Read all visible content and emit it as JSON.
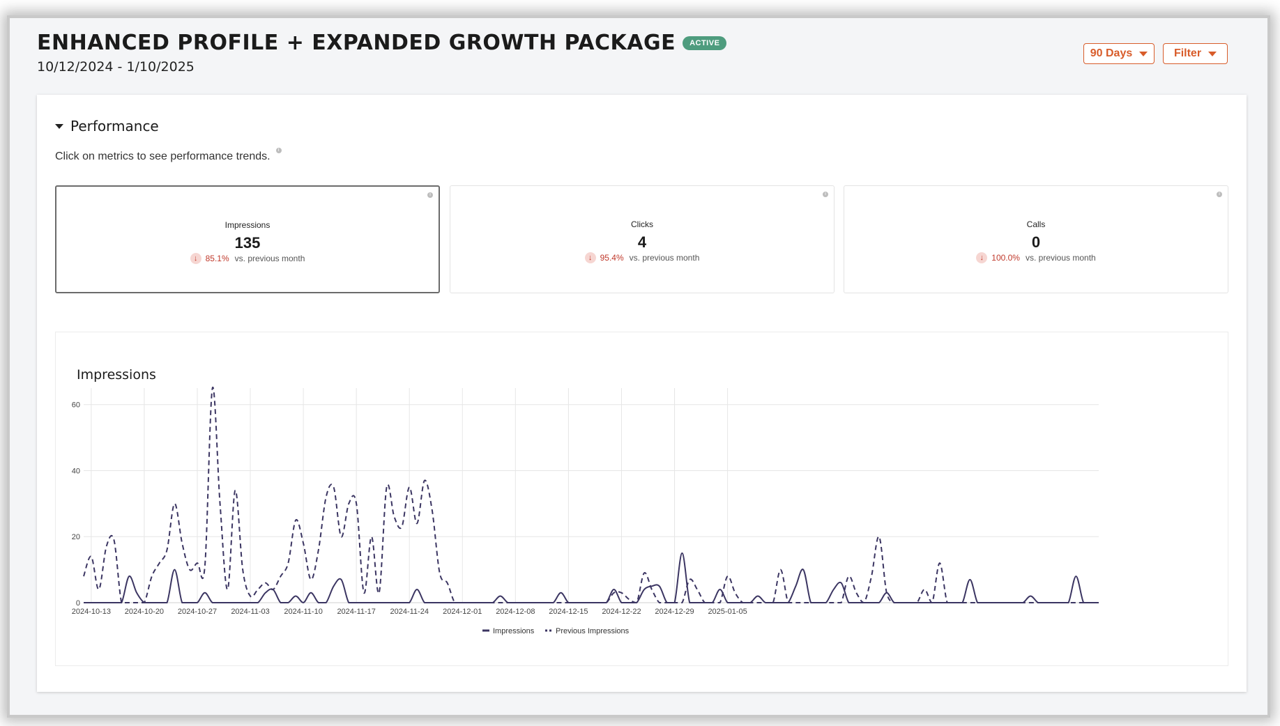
{
  "header": {
    "title": "ENHANCED PROFILE + EXPANDED GROWTH PACKAGE",
    "badge": "ACTIVE",
    "date_range": "10/12/2024 - 1/10/2025"
  },
  "controls": {
    "period_label": "90 Days",
    "filter_label": "Filter"
  },
  "performance": {
    "section_title": "Performance",
    "hint": "Click on metrics to see performance trends.",
    "metrics": [
      {
        "label": "Impressions",
        "value": "135",
        "change": "85.1%",
        "comparison": "vs. previous month"
      },
      {
        "label": "Clicks",
        "value": "4",
        "change": "95.4%",
        "comparison": "vs. previous month"
      },
      {
        "label": "Calls",
        "value": "0",
        "change": "100.0%",
        "comparison": "vs. previous month"
      }
    ]
  },
  "colors": {
    "accent": "#d85c2a",
    "active_badge": "#4e9c7e",
    "series_line": "#3b3562",
    "negative": "#c0392b"
  },
  "icons": {
    "dropdown": "chevron-down-icon",
    "info": "info-icon",
    "trend": "arrow-down-icon"
  },
  "chart_data": {
    "type": "line",
    "title": "Impressions",
    "ylim": [
      0,
      65
    ],
    "yticks": [
      0,
      20,
      40,
      60
    ],
    "x_tick_labels": [
      "2024-10-13",
      "2024-10-20",
      "2024-10-27",
      "2024-11-03",
      "2024-11-10",
      "2024-11-17",
      "2024-11-24",
      "2024-12-01",
      "2024-12-08",
      "2024-12-15",
      "2024-12-22",
      "2024-12-29",
      "2025-01-05"
    ],
    "x_start": "2024-10-12",
    "grid": true,
    "legend_position": "bottom-center",
    "series": [
      {
        "name": "Impressions",
        "style": "solid",
        "values": [
          0,
          0,
          0,
          0,
          0,
          0,
          8,
          3,
          0,
          0,
          0,
          0,
          10,
          0,
          0,
          0,
          3,
          0,
          0,
          0,
          0,
          0,
          0,
          0,
          3,
          4,
          0,
          0,
          2,
          0,
          3,
          0,
          0,
          5,
          7,
          0,
          0,
          0,
          0,
          0,
          0,
          0,
          0,
          0,
          4,
          0,
          0,
          0,
          0,
          0,
          0,
          0,
          0,
          0,
          0,
          2,
          0,
          0,
          0,
          0,
          0,
          0,
          0,
          3,
          0,
          0,
          0,
          0,
          0,
          0,
          4,
          0,
          0,
          0,
          4,
          5,
          5,
          0,
          0,
          15,
          0,
          0,
          0,
          0,
          4,
          0,
          0,
          0,
          0,
          2,
          0,
          0,
          0,
          0,
          5,
          10,
          0,
          0,
          0,
          4,
          6,
          0,
          0,
          0,
          0,
          0,
          3,
          0,
          0,
          0,
          0,
          0,
          0,
          0,
          0,
          0,
          0,
          7,
          0,
          0,
          0,
          0,
          0,
          0,
          0,
          2,
          0,
          0,
          0,
          0,
          0,
          8,
          0,
          0,
          0
        ]
      },
      {
        "name": "Previous Impressions",
        "style": "dashed",
        "values": [
          8,
          14,
          4,
          17,
          19,
          0,
          0,
          0,
          0,
          8,
          12,
          16,
          30,
          18,
          10,
          12,
          11,
          65,
          30,
          4,
          34,
          10,
          2,
          4,
          6,
          4,
          8,
          12,
          25,
          18,
          7,
          16,
          32,
          35,
          20,
          30,
          30,
          3,
          20,
          3,
          35,
          26,
          23,
          35,
          24,
          37,
          28,
          9,
          6,
          0,
          0,
          0,
          0,
          0,
          0,
          0,
          0,
          0,
          0,
          0,
          0,
          0,
          0,
          0,
          0,
          0,
          0,
          0,
          0,
          0,
          3,
          3,
          1,
          0,
          9,
          4,
          0,
          0,
          0,
          0,
          7,
          4,
          0,
          0,
          0,
          8,
          3,
          0,
          0,
          0,
          0,
          0,
          10,
          0,
          0,
          0,
          0,
          0,
          0,
          0,
          0,
          8,
          3,
          0,
          8,
          20,
          3,
          0,
          0,
          0,
          0,
          4,
          0,
          12,
          0,
          0,
          0,
          0,
          0,
          0,
          0,
          0,
          0,
          0,
          0,
          0,
          0,
          0,
          0,
          0,
          0,
          0,
          0,
          0,
          0
        ]
      }
    ]
  }
}
